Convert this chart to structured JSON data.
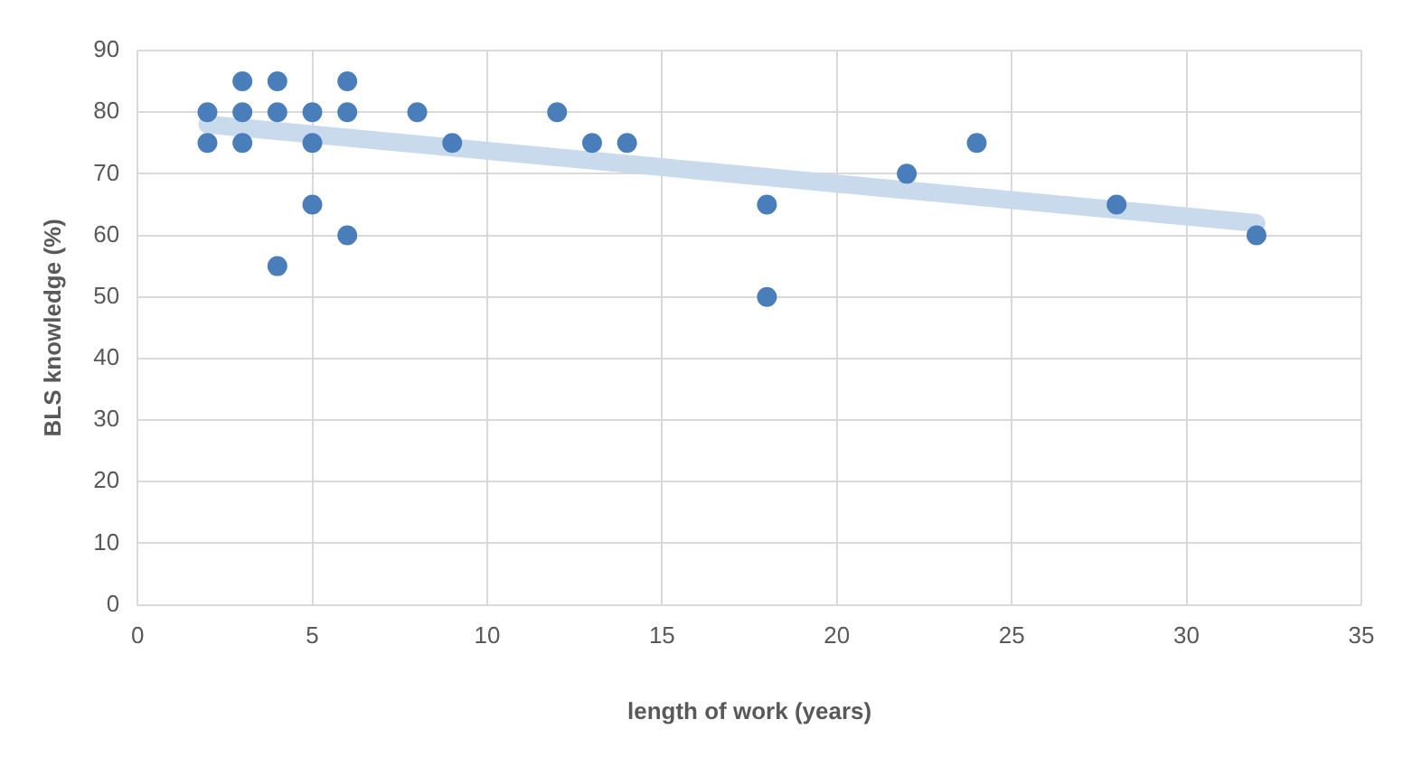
{
  "chart_data": {
    "type": "scatter",
    "xlabel": "length of work (years)",
    "ylabel": "BLS knowledge (%)",
    "x": [
      2,
      2,
      3,
      3,
      3,
      4,
      4,
      4,
      5,
      5,
      5,
      6,
      6,
      6,
      8,
      9,
      12,
      13,
      14,
      18,
      18,
      22,
      24,
      28,
      32
    ],
    "series": [
      {
        "color": "#4a7ebb",
        "marker": "circle",
        "values": [
          80,
          75,
          85,
          80,
          75,
          85,
          80,
          55,
          80,
          75,
          65,
          85,
          80,
          60,
          80,
          75,
          80,
          75,
          75,
          65,
          50,
          70,
          75,
          65,
          60
        ]
      },
      {
        "type": "line",
        "color": "#c9daed",
        "x": [
          2,
          32
        ],
        "marker": "none",
        "values": [
          78,
          62
        ]
      }
    ],
    "xlim": [
      0,
      35
    ],
    "xticks": [
      0,
      5,
      10,
      15,
      20,
      25,
      30,
      35
    ],
    "ylim": [
      0,
      90
    ],
    "yticks": [
      0,
      10,
      20,
      30,
      40,
      50,
      60,
      70,
      80,
      90
    ],
    "grid": true,
    "legend": false
  }
}
